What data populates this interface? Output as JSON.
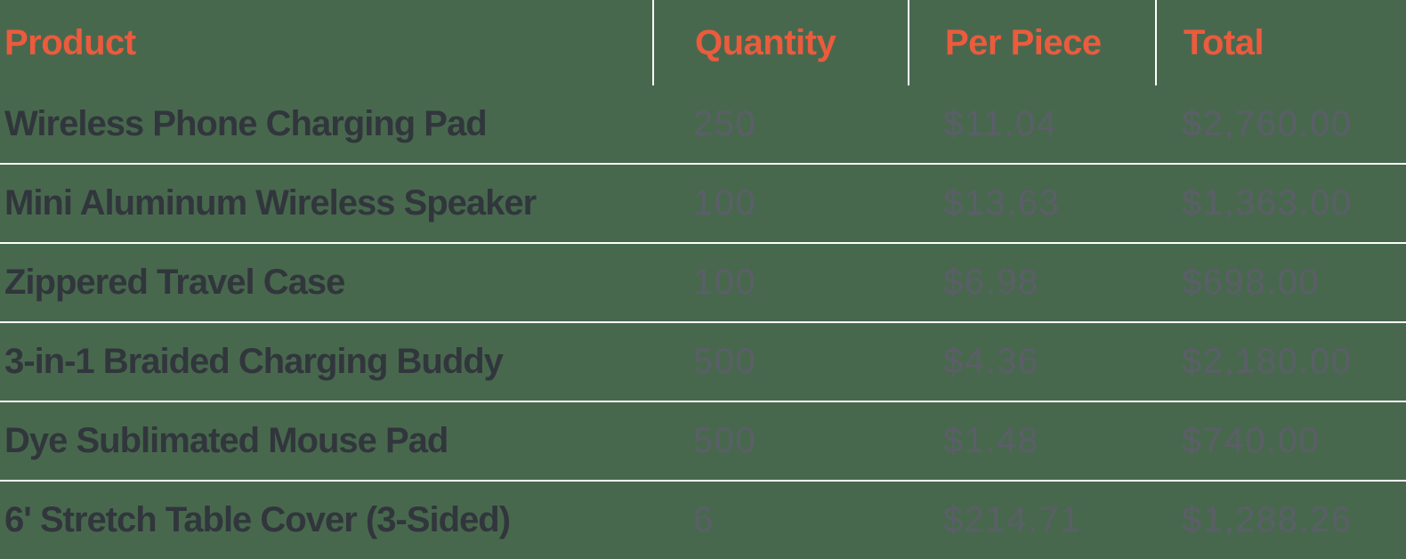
{
  "colors": {
    "background": "#48684E",
    "divider": "#FDFDFA",
    "header_accent": "#EB5B3C",
    "product_text": "#31363C",
    "value_text": "#5B5E68"
  },
  "table": {
    "columns": [
      {
        "label": "Product"
      },
      {
        "label": "Quantity"
      },
      {
        "label": "Per Piece"
      },
      {
        "label": "Total"
      }
    ],
    "rows": [
      {
        "product": "Wireless Phone Charging Pad",
        "quantity": "250",
        "per_piece": "$11.04",
        "total": "$2,760.00"
      },
      {
        "product": "Mini Aluminum Wireless Speaker",
        "quantity": "100",
        "per_piece": "$13.63",
        "total": "$1,363.00"
      },
      {
        "product": "Zippered Travel Case",
        "quantity": "100",
        "per_piece": "$6.98",
        "total": "$698.00"
      },
      {
        "product": "3-in-1 Braided Charging Buddy",
        "quantity": "500",
        "per_piece": "$4.36",
        "total": "$2,180.00"
      },
      {
        "product": "Dye Sublimated Mouse Pad",
        "quantity": "500",
        "per_piece": "$1.48",
        "total": "$740.00"
      },
      {
        "product": "6' Stretch Table Cover (3-Sided)",
        "quantity": "6",
        "per_piece": "$214.71",
        "total": "$1,288.26"
      }
    ]
  }
}
